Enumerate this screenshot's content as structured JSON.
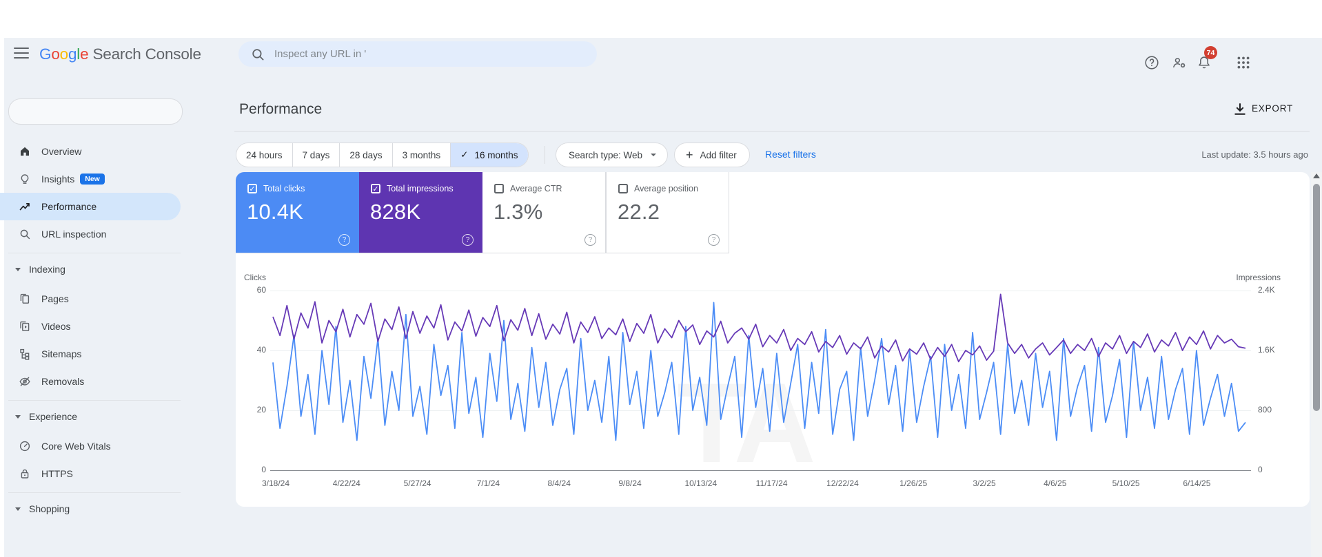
{
  "colors": {
    "app_background": "#edf1f6",
    "accent_blue": "#1a73e8",
    "clicks_blue": "#4c8bf4",
    "impressions_purple": "#5e35b1",
    "selected_chip_bg": "#d3e3fd",
    "nav_active_bg": "#d3e6fb",
    "notification_badge_red": "#d23f31"
  },
  "header": {
    "logo_letters": [
      {
        "ch": "G",
        "color": "#4285F4"
      },
      {
        "ch": "o",
        "color": "#EA4335"
      },
      {
        "ch": "o",
        "color": "#FBBC05"
      },
      {
        "ch": "g",
        "color": "#4285F4"
      },
      {
        "ch": "l",
        "color": "#34A853"
      },
      {
        "ch": "e",
        "color": "#EA4335"
      }
    ],
    "product_name": " Search Console",
    "search_placeholder": "Inspect any URL in '",
    "notification_count": "74"
  },
  "sidebar": {
    "property_selector_value": "",
    "sections": [
      {
        "title": "",
        "items": [
          {
            "icon": "home",
            "label": "Overview"
          },
          {
            "icon": "bulb",
            "label": "Insights",
            "badge": "New"
          },
          {
            "icon": "performance",
            "label": "Performance",
            "active": true
          },
          {
            "icon": "search",
            "label": "URL inspection"
          }
        ]
      },
      {
        "title": "Indexing",
        "items": [
          {
            "icon": "pages",
            "label": "Pages"
          },
          {
            "icon": "videos",
            "label": "Videos"
          },
          {
            "icon": "sitemaps",
            "label": "Sitemaps"
          },
          {
            "icon": "removals",
            "label": "Removals"
          }
        ]
      },
      {
        "title": "Experience",
        "items": [
          {
            "icon": "gauge",
            "label": "Core Web Vitals"
          },
          {
            "icon": "lock",
            "label": "HTTPS"
          }
        ]
      },
      {
        "title": "Shopping",
        "items": []
      }
    ]
  },
  "main": {
    "title": "Performance",
    "export_label": "EXPORT",
    "filters": {
      "time_ranges": [
        {
          "label": "24 hours",
          "selected": false
        },
        {
          "label": "7 days",
          "selected": false
        },
        {
          "label": "28 days",
          "selected": false
        },
        {
          "label": "3 months",
          "selected": false
        },
        {
          "label": "16 months",
          "selected": true
        }
      ],
      "search_type_label": "Search type: Web",
      "add_filter_label": "Add filter",
      "reset_filters_label": "Reset filters",
      "last_update": "Last update: 3.5 hours ago"
    },
    "metrics": [
      {
        "label": "Total clicks",
        "value": "10.4K",
        "checked": true,
        "color": "#4c8bf4"
      },
      {
        "label": "Total impressions",
        "value": "828K",
        "checked": true,
        "color": "#5e35b1"
      },
      {
        "label": "Average CTR",
        "value": "1.3%",
        "checked": false,
        "color": ""
      },
      {
        "label": "Average position",
        "value": "22.2",
        "checked": false,
        "color": ""
      }
    ]
  },
  "chart_data": {
    "type": "line",
    "title": "Clicks and impressions over time (16 months, daily)",
    "grid": "horizontal",
    "legend_position": "none",
    "watermark": "TA",
    "left_axis": {
      "label": "Clicks",
      "max": 60,
      "ticks": [
        "60",
        "40",
        "20",
        "0"
      ]
    },
    "right_axis": {
      "label": "Impressions",
      "max": 2400,
      "ticks": [
        "2.4K",
        "1.6K",
        "800",
        "0"
      ]
    },
    "x_tick_labels": [
      "3/18/24",
      "4/22/24",
      "5/27/24",
      "7/1/24",
      "8/4/24",
      "9/8/24",
      "10/13/24",
      "11/17/24",
      "12/22/24",
      "1/26/25",
      "3/2/25",
      "4/6/25",
      "5/10/25",
      "6/14/25"
    ],
    "series": [
      {
        "name": "Clicks",
        "axis": "left",
        "color": "#4c8df6",
        "values": [
          36,
          14,
          28,
          45,
          18,
          32,
          12,
          40,
          22,
          48,
          16,
          30,
          10,
          38,
          24,
          44,
          15,
          33,
          20,
          52,
          18,
          28,
          12,
          42,
          25,
          35,
          14,
          46,
          19,
          31,
          11,
          39,
          23,
          50,
          17,
          29,
          13,
          41,
          21,
          36,
          15,
          27,
          34,
          12,
          44,
          20,
          30,
          16,
          38,
          10,
          46,
          22,
          33,
          14,
          40,
          18,
          26,
          36,
          12,
          48,
          20,
          31,
          15,
          56,
          17,
          28,
          38,
          11,
          45,
          21,
          34,
          13,
          39,
          16,
          29,
          42,
          14,
          36,
          19,
          47,
          12,
          27,
          33,
          10,
          41,
          18,
          30,
          44,
          22,
          35,
          13,
          40,
          16,
          28,
          38,
          11,
          42,
          20,
          32,
          14,
          46,
          17,
          26,
          36,
          12,
          42,
          19,
          30,
          15,
          39,
          21,
          33,
          10,
          44,
          18,
          28,
          35,
          13,
          41,
          16,
          25,
          37,
          11,
          43,
          20,
          31,
          14,
          38,
          17,
          27,
          34,
          12,
          40,
          15,
          24,
          32,
          18,
          29,
          13,
          16
        ]
      },
      {
        "name": "Impressions",
        "axis": "right",
        "color": "#673ab7",
        "values": [
          2050,
          1800,
          2200,
          1750,
          2100,
          1900,
          2250,
          1700,
          2000,
          1850,
          2150,
          1780,
          2080,
          1950,
          2230,
          1720,
          2020,
          1880,
          2180,
          1760,
          2120,
          1830,
          2060,
          1900,
          2210,
          1740,
          1980,
          1860,
          2140,
          1790,
          2040,
          1920,
          2200,
          1730,
          2010,
          1870,
          2160,
          1800,
          2090,
          1750,
          1950,
          1820,
          2110,
          1700,
          1980,
          1840,
          2050,
          1760,
          1900,
          1810,
          2020,
          1720,
          1960,
          1830,
          2080,
          1700,
          1890,
          1770,
          2000,
          1850,
          1940,
          1680,
          1860,
          1780,
          1990,
          1700,
          1830,
          1900,
          1750,
          1950,
          1650,
          1800,
          1700,
          1880,
          1600,
          1760,
          1680,
          1850,
          1580,
          1720,
          1640,
          1800,
          1550,
          1700,
          1620,
          1780,
          1500,
          1660,
          1580,
          1740,
          1460,
          1620,
          1550,
          1700,
          1480,
          1640,
          1520,
          1680,
          1450,
          1600,
          1540,
          1660,
          1470,
          1590,
          2350,
          1700,
          1560,
          1680,
          1500,
          1620,
          1700,
          1540,
          1640,
          1740,
          1560,
          1680,
          1600,
          1760,
          1520,
          1700,
          1620,
          1800,
          1560,
          1720,
          1640,
          1820,
          1580,
          1740,
          1660,
          1840,
          1600,
          1780,
          1680,
          1860,
          1620,
          1800,
          1700,
          1750,
          1650,
          1630
        ]
      }
    ]
  }
}
